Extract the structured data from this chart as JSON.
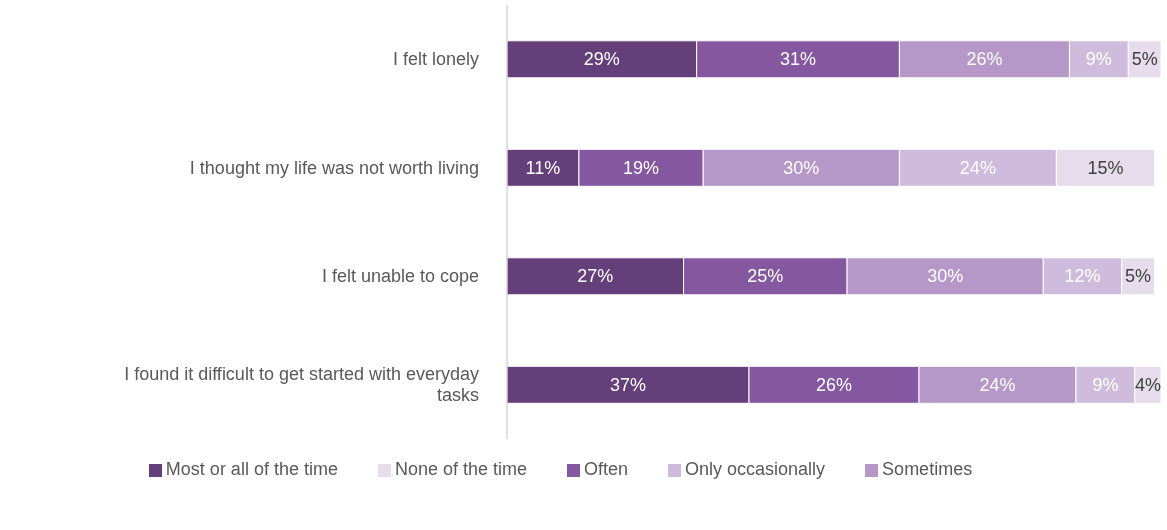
{
  "chart_data": {
    "type": "bar",
    "orientation": "horizontal",
    "stacked": true,
    "categories": [
      "I felt lonely",
      "I thought my life was not worth living",
      "I felt unable to cope",
      "I found it difficult to get started with everyday tasks"
    ],
    "series": [
      {
        "name": "Most or all of the time",
        "color": "#643f79",
        "values": [
          29,
          11,
          27,
          37
        ],
        "value_labels": [
          "29%",
          "11%",
          "27%",
          "37%"
        ]
      },
      {
        "name": "Often",
        "color": "#8557a0",
        "values": [
          31,
          19,
          25,
          26
        ],
        "value_labels": [
          "31%",
          "19%",
          "25%",
          "26%"
        ]
      },
      {
        "name": "Sometimes",
        "color": "#b597c8",
        "values": [
          26,
          30,
          30,
          24
        ],
        "value_labels": [
          "26%",
          "30%",
          "30%",
          "24%"
        ]
      },
      {
        "name": "Only occasionally",
        "color": "#cfbcdc",
        "values": [
          9,
          24,
          12,
          9
        ],
        "value_labels": [
          "9%",
          "24%",
          "12%",
          "9%"
        ]
      },
      {
        "name": "None of the time",
        "color": "#e6dcec",
        "values": [
          5,
          15,
          5,
          4
        ],
        "value_labels": [
          "5%",
          "15%",
          "5%",
          "4%"
        ]
      }
    ],
    "xlim": [
      0,
      100
    ],
    "grid": false,
    "legend": "bottom"
  }
}
